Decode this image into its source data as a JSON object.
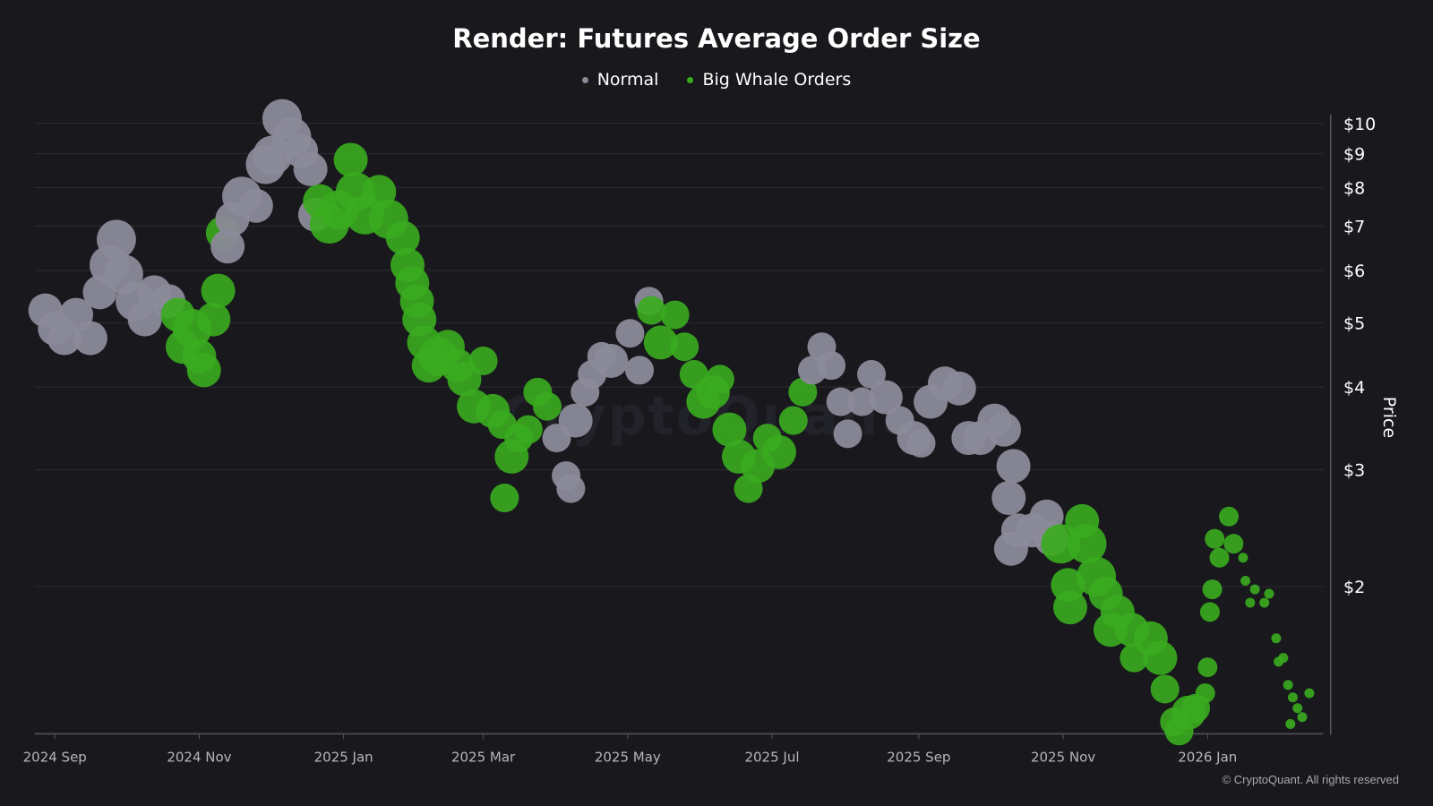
{
  "chart_data": {
    "type": "scatter",
    "title": "Render: Futures Average Order Size",
    "ylabel": "Price",
    "yscale": "log",
    "ylim": [
      1.2,
      10.5
    ],
    "yticks": [
      {
        "v": 10,
        "label": "$10"
      },
      {
        "v": 9,
        "label": "$9"
      },
      {
        "v": 8,
        "label": "$8"
      },
      {
        "v": 7,
        "label": "$7"
      },
      {
        "v": 6,
        "label": "$6"
      },
      {
        "v": 5,
        "label": "$5"
      },
      {
        "v": 4,
        "label": "$4"
      },
      {
        "v": 3,
        "label": "$3"
      },
      {
        "v": 2,
        "label": "$2"
      }
    ],
    "xticks": [
      {
        "d": "2024-09-01",
        "label": "2024 Sep"
      },
      {
        "d": "2024-11-01",
        "label": "2024 Nov"
      },
      {
        "d": "2025-01-01",
        "label": "2025 Jan"
      },
      {
        "d": "2025-03-01",
        "label": "2025 Mar"
      },
      {
        "d": "2025-05-01",
        "label": "2025 May"
      },
      {
        "d": "2025-07-01",
        "label": "2025 Jul"
      },
      {
        "d": "2025-09-01",
        "label": "2025 Sep"
      },
      {
        "d": "2025-11-01",
        "label": "2025 Nov"
      },
      {
        "d": "2026-01-01",
        "label": "2026 Jan"
      }
    ],
    "grid": true,
    "legend_position": "top-center",
    "series": [
      {
        "name": "Normal",
        "color": "#8b8a99"
      },
      {
        "name": "Big Whale Orders",
        "color": "#3aac1f"
      }
    ],
    "points_note_columns": [
      "date",
      "price",
      "series",
      "relative_size"
    ],
    "points": [
      [
        "2024-08-28",
        5.22,
        "Normal",
        4
      ],
      [
        "2024-09-01",
        4.9,
        "Normal",
        4
      ],
      [
        "2024-09-05",
        4.74,
        "Normal",
        4
      ],
      [
        "2024-09-10",
        5.14,
        "Normal",
        4
      ],
      [
        "2024-09-16",
        4.74,
        "Normal",
        4
      ],
      [
        "2024-09-20",
        5.56,
        "Normal",
        4
      ],
      [
        "2024-09-24",
        6.11,
        "Normal",
        5
      ],
      [
        "2024-09-27",
        6.68,
        "Normal",
        5
      ],
      [
        "2024-09-30",
        5.92,
        "Normal",
        5
      ],
      [
        "2024-10-05",
        5.39,
        "Normal",
        5
      ],
      [
        "2024-10-09",
        5.06,
        "Normal",
        4
      ],
      [
        "2024-10-13",
        5.56,
        "Normal",
        4
      ],
      [
        "2024-10-19",
        5.39,
        "Normal",
        4
      ],
      [
        "2024-10-23",
        5.14,
        "Big Whale Orders",
        4
      ],
      [
        "2024-10-25",
        4.6,
        "Big Whale Orders",
        4
      ],
      [
        "2024-10-29",
        4.9,
        "Big Whale Orders",
        5
      ],
      [
        "2024-11-01",
        4.45,
        "Big Whale Orders",
        4
      ],
      [
        "2024-11-03",
        4.24,
        "Big Whale Orders",
        4
      ],
      [
        "2024-11-07",
        5.06,
        "Big Whale Orders",
        4
      ],
      [
        "2024-11-09",
        5.59,
        "Big Whale Orders",
        4
      ],
      [
        "2024-11-11",
        6.83,
        "Big Whale Orders",
        4
      ],
      [
        "2024-11-13",
        6.52,
        "Normal",
        4
      ],
      [
        "2024-11-15",
        7.17,
        "Normal",
        4
      ],
      [
        "2024-11-19",
        7.76,
        "Normal",
        5
      ],
      [
        "2024-11-25",
        7.51,
        "Normal",
        4
      ],
      [
        "2024-11-29",
        8.67,
        "Normal",
        5
      ],
      [
        "2024-12-02",
        8.95,
        "Normal",
        5
      ],
      [
        "2024-12-06",
        10.16,
        "Normal",
        5
      ],
      [
        "2024-12-10",
        9.54,
        "Normal",
        5
      ],
      [
        "2024-12-14",
        9.09,
        "Normal",
        4
      ],
      [
        "2024-12-18",
        8.53,
        "Normal",
        4
      ],
      [
        "2024-12-20",
        7.28,
        "Normal",
        4
      ],
      [
        "2024-12-22",
        7.63,
        "Big Whale Orders",
        4
      ],
      [
        "2024-12-26",
        7.05,
        "Big Whale Orders",
        5
      ],
      [
        "2024-12-30",
        7.4,
        "Big Whale Orders",
        5
      ],
      [
        "2025-01-04",
        8.81,
        "Big Whale Orders",
        4
      ],
      [
        "2025-01-06",
        7.88,
        "Big Whale Orders",
        5
      ],
      [
        "2025-01-10",
        7.28,
        "Big Whale Orders",
        5
      ],
      [
        "2025-01-16",
        7.88,
        "Big Whale Orders",
        4
      ],
      [
        "2025-01-20",
        7.17,
        "Big Whale Orders",
        5
      ],
      [
        "2025-01-26",
        6.72,
        "Big Whale Orders",
        4
      ],
      [
        "2025-01-28",
        6.11,
        "Big Whale Orders",
        4
      ],
      [
        "2025-01-30",
        5.74,
        "Big Whale Orders",
        4
      ],
      [
        "2025-02-01",
        5.39,
        "Big Whale Orders",
        4
      ],
      [
        "2025-02-02",
        5.06,
        "Big Whale Orders",
        4
      ],
      [
        "2025-02-04",
        4.67,
        "Big Whale Orders",
        4
      ],
      [
        "2025-02-06",
        4.31,
        "Big Whale Orders",
        4
      ],
      [
        "2025-02-10",
        4.45,
        "Big Whale Orders",
        5
      ],
      [
        "2025-02-14",
        4.6,
        "Big Whale Orders",
        4
      ],
      [
        "2025-02-18",
        4.31,
        "Big Whale Orders",
        4
      ],
      [
        "2025-02-21",
        4.11,
        "Big Whale Orders",
        4
      ],
      [
        "2025-02-25",
        3.74,
        "Big Whale Orders",
        4
      ],
      [
        "2025-03-01",
        4.38,
        "Big Whale Orders",
        3
      ],
      [
        "2025-03-05",
        3.68,
        "Big Whale Orders",
        4
      ],
      [
        "2025-03-09",
        3.51,
        "Big Whale Orders",
        3
      ],
      [
        "2025-03-10",
        2.72,
        "Big Whale Orders",
        3
      ],
      [
        "2025-03-13",
        3.14,
        "Big Whale Orders",
        4
      ],
      [
        "2025-03-16",
        3.35,
        "Big Whale Orders",
        3
      ],
      [
        "2025-03-20",
        3.45,
        "Big Whale Orders",
        3
      ],
      [
        "2025-03-24",
        3.93,
        "Big Whale Orders",
        3
      ],
      [
        "2025-03-28",
        3.74,
        "Big Whale Orders",
        3
      ],
      [
        "2025-04-01",
        3.35,
        "Normal",
        3
      ],
      [
        "2025-04-05",
        2.94,
        "Normal",
        3
      ],
      [
        "2025-04-07",
        2.81,
        "Normal",
        3
      ],
      [
        "2025-04-09",
        3.56,
        "Normal",
        4
      ],
      [
        "2025-04-13",
        3.93,
        "Normal",
        3
      ],
      [
        "2025-04-16",
        4.18,
        "Normal",
        3
      ],
      [
        "2025-04-20",
        4.45,
        "Normal",
        3
      ],
      [
        "2025-04-24",
        4.38,
        "Normal",
        4
      ],
      [
        "2025-05-02",
        4.82,
        "Normal",
        3
      ],
      [
        "2025-05-06",
        4.24,
        "Normal",
        3
      ],
      [
        "2025-05-10",
        5.39,
        "Normal",
        3
      ],
      [
        "2025-05-11",
        5.22,
        "Big Whale Orders",
        3
      ],
      [
        "2025-05-15",
        4.67,
        "Big Whale Orders",
        4
      ],
      [
        "2025-05-21",
        5.14,
        "Big Whale Orders",
        3
      ],
      [
        "2025-05-25",
        4.6,
        "Big Whale Orders",
        3
      ],
      [
        "2025-05-29",
        4.18,
        "Big Whale Orders",
        3
      ],
      [
        "2025-06-02",
        3.8,
        "Big Whale Orders",
        4
      ],
      [
        "2025-06-06",
        3.93,
        "Big Whale Orders",
        4
      ],
      [
        "2025-06-09",
        4.11,
        "Big Whale Orders",
        3
      ],
      [
        "2025-06-13",
        3.45,
        "Big Whale Orders",
        4
      ],
      [
        "2025-06-17",
        3.14,
        "Big Whale Orders",
        4
      ],
      [
        "2025-06-21",
        2.81,
        "Big Whale Orders",
        3
      ],
      [
        "2025-06-25",
        3.04,
        "Big Whale Orders",
        4
      ],
      [
        "2025-06-29",
        3.35,
        "Big Whale Orders",
        3
      ],
      [
        "2025-07-04",
        3.19,
        "Big Whale Orders",
        4
      ],
      [
        "2025-07-10",
        3.56,
        "Big Whale Orders",
        3
      ],
      [
        "2025-07-14",
        3.93,
        "Big Whale Orders",
        3
      ],
      [
        "2025-07-18",
        4.24,
        "Normal",
        3
      ],
      [
        "2025-07-22",
        4.6,
        "Normal",
        3
      ],
      [
        "2025-07-26",
        4.31,
        "Normal",
        3
      ],
      [
        "2025-07-30",
        3.8,
        "Normal",
        3
      ],
      [
        "2025-08-02",
        3.4,
        "Normal",
        3
      ],
      [
        "2025-08-08",
        3.8,
        "Normal",
        3
      ],
      [
        "2025-08-12",
        4.18,
        "Normal",
        3
      ],
      [
        "2025-08-18",
        3.86,
        "Normal",
        4
      ],
      [
        "2025-08-24",
        3.56,
        "Normal",
        3
      ],
      [
        "2025-08-30",
        3.35,
        "Normal",
        4
      ],
      [
        "2025-09-02",
        3.29,
        "Normal",
        3
      ],
      [
        "2025-09-06",
        3.8,
        "Normal",
        4
      ],
      [
        "2025-09-12",
        4.05,
        "Normal",
        4
      ],
      [
        "2025-09-18",
        3.98,
        "Normal",
        4
      ],
      [
        "2025-09-22",
        3.35,
        "Normal",
        4
      ],
      [
        "2025-09-27",
        3.35,
        "Normal",
        4
      ],
      [
        "2025-10-03",
        3.56,
        "Normal",
        4
      ],
      [
        "2025-10-07",
        3.45,
        "Normal",
        4
      ],
      [
        "2025-10-11",
        3.04,
        "Normal",
        4
      ],
      [
        "2025-10-09",
        2.72,
        "Normal",
        4
      ],
      [
        "2025-10-10",
        2.28,
        "Normal",
        4
      ],
      [
        "2025-10-13",
        2.43,
        "Normal",
        4
      ],
      [
        "2025-10-19",
        2.43,
        "Normal",
        4
      ],
      [
        "2025-10-25",
        2.55,
        "Normal",
        4
      ],
      [
        "2025-10-27",
        2.36,
        "Normal",
        4
      ],
      [
        "2025-10-31",
        2.32,
        "Big Whale Orders",
        5
      ],
      [
        "2025-11-03",
        2.01,
        "Big Whale Orders",
        4
      ],
      [
        "2025-11-04",
        1.86,
        "Big Whale Orders",
        4
      ],
      [
        "2025-11-09",
        2.51,
        "Big Whale Orders",
        4
      ],
      [
        "2025-11-11",
        2.32,
        "Big Whale Orders",
        5
      ],
      [
        "2025-11-15",
        2.07,
        "Big Whale Orders",
        5
      ],
      [
        "2025-11-19",
        1.95,
        "Big Whale Orders",
        4
      ],
      [
        "2025-11-21",
        1.72,
        "Big Whale Orders",
        4
      ],
      [
        "2025-11-24",
        1.83,
        "Big Whale Orders",
        4
      ],
      [
        "2025-11-30",
        1.72,
        "Big Whale Orders",
        4
      ],
      [
        "2025-12-01",
        1.56,
        "Big Whale Orders",
        3
      ],
      [
        "2025-12-08",
        1.67,
        "Big Whale Orders",
        4
      ],
      [
        "2025-12-12",
        1.56,
        "Big Whale Orders",
        4
      ],
      [
        "2025-12-14",
        1.4,
        "Big Whale Orders",
        3
      ],
      [
        "2025-12-18",
        1.25,
        "Big Whale Orders",
        3
      ],
      [
        "2025-12-20",
        1.21,
        "Big Whale Orders",
        3
      ],
      [
        "2025-12-24",
        1.29,
        "Big Whale Orders",
        4
      ],
      [
        "2025-12-27",
        1.31,
        "Big Whale Orders",
        3
      ],
      [
        "2025-12-31",
        1.38,
        "Big Whale Orders",
        2
      ],
      [
        "2026-01-01",
        1.51,
        "Big Whale Orders",
        2
      ],
      [
        "2026-01-02",
        1.83,
        "Big Whale Orders",
        2
      ],
      [
        "2026-01-03",
        1.98,
        "Big Whale Orders",
        2
      ],
      [
        "2026-01-04",
        2.36,
        "Big Whale Orders",
        2
      ],
      [
        "2026-01-06",
        2.21,
        "Big Whale Orders",
        2
      ],
      [
        "2026-01-10",
        2.55,
        "Big Whale Orders",
        2
      ],
      [
        "2026-01-12",
        2.32,
        "Big Whale Orders",
        2
      ],
      [
        "2026-01-16",
        2.21,
        "Big Whale Orders",
        1
      ],
      [
        "2026-01-17",
        2.04,
        "Big Whale Orders",
        1
      ],
      [
        "2026-01-19",
        1.89,
        "Big Whale Orders",
        1
      ],
      [
        "2026-01-21",
        1.98,
        "Big Whale Orders",
        1
      ],
      [
        "2026-01-25",
        1.89,
        "Big Whale Orders",
        1
      ],
      [
        "2026-01-27",
        1.95,
        "Big Whale Orders",
        1
      ],
      [
        "2026-01-30",
        1.67,
        "Big Whale Orders",
        1
      ],
      [
        "2026-01-31",
        1.54,
        "Big Whale Orders",
        1
      ],
      [
        "2026-02-02",
        1.56,
        "Big Whale Orders",
        1
      ],
      [
        "2026-02-04",
        1.42,
        "Big Whale Orders",
        1
      ],
      [
        "2026-02-05",
        1.24,
        "Big Whale Orders",
        1
      ],
      [
        "2026-02-06",
        1.36,
        "Big Whale Orders",
        1
      ],
      [
        "2026-02-08",
        1.31,
        "Big Whale Orders",
        1
      ],
      [
        "2026-02-10",
        1.27,
        "Big Whale Orders",
        1
      ],
      [
        "2026-02-13",
        1.38,
        "Big Whale Orders",
        1
      ]
    ]
  },
  "legend": {
    "normal": "Normal",
    "whale": "Big Whale Orders"
  },
  "watermark": "CryptoQuant",
  "credit": "© CryptoQuant. All rights reserved"
}
